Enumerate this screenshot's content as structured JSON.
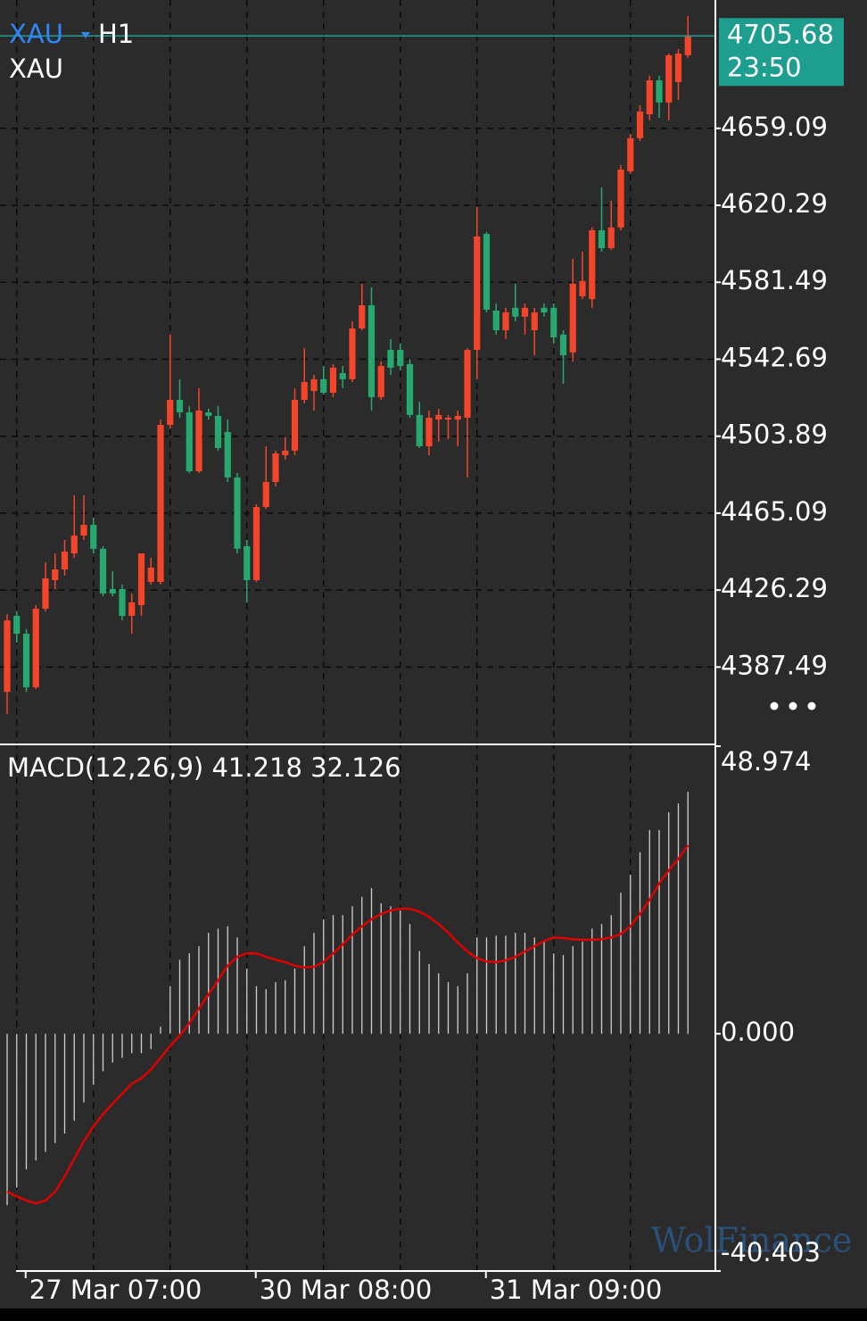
{
  "chart_data": [
    {
      "type": "candlestick",
      "symbol": "XAU",
      "timeframe": "H1",
      "subtitle": "XAU",
      "categories": [
        null,
        "27 Mar 07:00",
        null,
        null,
        null,
        null,
        null,
        null,
        null,
        null,
        null,
        null,
        null,
        null,
        null,
        null,
        null,
        null,
        null,
        null,
        null,
        null,
        null,
        null,
        null,
        "30 Mar 08:00",
        null,
        null,
        null,
        null,
        null,
        null,
        null,
        null,
        null,
        null,
        null,
        null,
        null,
        null,
        null,
        null,
        null,
        null,
        null,
        null,
        null,
        null,
        null,
        "31 Mar 09:00",
        null,
        null,
        null,
        null,
        null,
        null,
        null,
        null,
        null,
        null,
        null,
        null,
        null,
        null,
        null,
        null,
        null,
        null,
        null,
        null,
        null,
        null
      ],
      "open": [
        4375.0,
        4413.3,
        4404.3,
        4377.3,
        4416.9,
        4431.3,
        4436.7,
        4444.8,
        4453.8,
        4459.2,
        4447.1,
        4426.8,
        4426.8,
        4413.3,
        4418.7,
        4430.4,
        4430.4,
        4509.6,
        4522.2,
        4515.9,
        4486.2,
        4515.9,
        4514.1,
        4506.0,
        4483.1,
        4448.4,
        4431.3,
        4468.2,
        4480.8,
        4494.3,
        4496.6,
        4522.2,
        4526.7,
        4532.6,
        4525.8,
        4535.7,
        4532.6,
        4558.2,
        4569.9,
        4523.6,
        4547.4,
        4547.4,
        4540.2,
        4514.6,
        4498.8,
        4512.3,
        4512.3,
        4512.3,
        4513.2,
        4547.4,
        4605.9,
        4567.2,
        4557.3,
        4568.6,
        4564.1,
        4557.3,
        4568.6,
        4568.6,
        4555.1,
        4546.1,
        4574.4,
        4573.0,
        4607.7,
        4598.7,
        4609.1,
        4637.4,
        4654.1,
        4666.2,
        4683.3,
        4672.1,
        4682.4,
        4695.9
      ],
      "high": [
        4414.2,
        4415.5,
        4406.6,
        4418.7,
        4440.3,
        4444.8,
        4451.6,
        4474.1,
        4474.1,
        4462.8,
        4448.4,
        4435.8,
        4429.1,
        4424.6,
        4444.8,
        4442.6,
        4512.3,
        4555.1,
        4532.6,
        4519.0,
        4528.1,
        4517.7,
        4519.0,
        4512.3,
        4485.3,
        4451.6,
        4469.6,
        4498.8,
        4496.6,
        4503.3,
        4528.1,
        4548.3,
        4534.8,
        4539.3,
        4540.2,
        4539.3,
        4561.8,
        4580.7,
        4578.9,
        4541.6,
        4552.8,
        4550.6,
        4542.9,
        4521.3,
        4516.8,
        4517.7,
        4514.6,
        4516.8,
        4548.3,
        4619.4,
        4606.8,
        4570.8,
        4568.6,
        4580.7,
        4570.8,
        4568.6,
        4570.8,
        4570.8,
        4557.3,
        4593.3,
        4596.9,
        4609.1,
        4629.3,
        4622.6,
        4640.6,
        4656.3,
        4670.7,
        4685.6,
        4685.6,
        4696.8,
        4699.1,
        4715.7
      ],
      "low": [
        4363.8,
        4399.8,
        4375.0,
        4376.4,
        4415.6,
        4426.8,
        4433.6,
        4442.6,
        4451.6,
        4444.8,
        4423.2,
        4423.2,
        4411.1,
        4404.3,
        4413.3,
        4429.1,
        4429.1,
        4507.8,
        4513.2,
        4485.3,
        4485.3,
        4512.3,
        4496.6,
        4480.8,
        4444.8,
        4420.1,
        4430.4,
        4467.3,
        4478.6,
        4492.1,
        4494.3,
        4520.4,
        4516.8,
        4524.9,
        4523.6,
        4528.1,
        4531.2,
        4557.3,
        4516.8,
        4522.2,
        4534.8,
        4537.1,
        4513.2,
        4497.9,
        4494.3,
        4501.1,
        4502.4,
        4498.8,
        4483.1,
        4532.6,
        4566.3,
        4555.1,
        4552.8,
        4561.8,
        4555.1,
        4544.7,
        4564.1,
        4550.6,
        4530.3,
        4541.6,
        4573.0,
        4568.6,
        4596.9,
        4597.8,
        4607.7,
        4636.1,
        4652.7,
        4663.1,
        4664.4,
        4663.1,
        4673.4,
        4694.6
      ],
      "close": [
        4411.0,
        4404.3,
        4377.3,
        4416.9,
        4432.2,
        4436.7,
        4445.7,
        4453.8,
        4459.2,
        4447.1,
        4424.6,
        4424.6,
        4413.3,
        4420.1,
        4444.8,
        4437.6,
        4509.6,
        4522.2,
        4515.9,
        4486.2,
        4516.8,
        4514.1,
        4497.9,
        4483.1,
        4447.1,
        4431.3,
        4468.2,
        4480.8,
        4495.2,
        4496.6,
        4522.2,
        4531.2,
        4532.6,
        4525.8,
        4538.4,
        4532.6,
        4558.2,
        4569.9,
        4523.6,
        4539.3,
        4538.4,
        4539.3,
        4514.6,
        4498.8,
        4513.2,
        4514.6,
        4513.2,
        4514.1,
        4547.4,
        4604.6,
        4567.7,
        4557.3,
        4566.3,
        4564.1,
        4568.6,
        4566.3,
        4566.3,
        4553.7,
        4544.7,
        4580.7,
        4582.1,
        4607.7,
        4598.7,
        4609.1,
        4638.3,
        4654.1,
        4667.6,
        4683.3,
        4672.1,
        4695.9,
        4696.8,
        4705.7
      ],
      "up_color": "#f4452a",
      "down_color": "#27a86e",
      "ylim": [
        4348.95,
        4723.8
      ],
      "yticks": [
        4659.09,
        4620.29,
        4581.49,
        4542.69,
        4503.89,
        4465.09,
        4426.29,
        4387.49
      ],
      "grid": true,
      "last_price": 4705.68,
      "last_time": "23:50",
      "last_price_color": "#1e9e8e",
      "watermark": "WolFinance"
    },
    {
      "type": "macd",
      "title": "MACD(12,26,9) 41.218 32.126",
      "values": [
        -29.2,
        -26.2,
        -23.1,
        -21.6,
        -20.1,
        -18.6,
        -17.0,
        -14.8,
        -11.7,
        -8.7,
        -6.4,
        -4.9,
        -4.1,
        -3.3,
        -3.3,
        -2.6,
        1.2,
        8.1,
        12.6,
        13.7,
        14.9,
        17.2,
        17.9,
        18.3,
        16.4,
        11.1,
        8.1,
        7.6,
        8.8,
        9.1,
        11.1,
        14.9,
        17.2,
        19.5,
        20.2,
        20.2,
        21.7,
        23.3,
        24.8,
        22.2,
        21.7,
        21.0,
        18.7,
        14.1,
        11.9,
        10.3,
        8.8,
        8.1,
        10.3,
        16.4,
        16.4,
        16.7,
        16.7,
        17.2,
        17.2,
        16.4,
        15.7,
        13.7,
        13.4,
        14.9,
        15.7,
        17.9,
        18.7,
        20.2,
        24.0,
        27.1,
        30.9,
        34.7,
        34.7,
        37.7,
        39.2,
        41.2
      ],
      "color": "#cfcfcf",
      "signal": [
        -26.9,
        -27.7,
        -28.4,
        -28.9,
        -28.4,
        -26.9,
        -24.3,
        -21.3,
        -18.3,
        -15.8,
        -13.7,
        -11.9,
        -10.2,
        -8.5,
        -7.6,
        -6.1,
        -4.1,
        -2.1,
        -0.3,
        1.8,
        4.3,
        6.7,
        9.1,
        11.6,
        13.1,
        13.7,
        13.7,
        13.1,
        12.6,
        12.2,
        11.6,
        11.3,
        11.4,
        12.2,
        13.7,
        15.2,
        16.9,
        18.3,
        19.5,
        20.4,
        21.0,
        21.3,
        21.3,
        20.8,
        19.9,
        18.7,
        17.2,
        15.5,
        14.0,
        12.9,
        12.3,
        12.2,
        12.5,
        13.1,
        14.0,
        14.9,
        15.8,
        16.4,
        16.3,
        16.1,
        16.0,
        16.0,
        16.1,
        16.4,
        17.0,
        18.3,
        20.4,
        22.8,
        25.6,
        27.8,
        29.8,
        32.1
      ],
      "signal_color": "#e00000",
      "ylim": [
        -40.403,
        48.974
      ],
      "yticks": [
        48.974,
        {
          "value": 0,
          "label": "0.000"
        },
        -40.403
      ]
    }
  ]
}
